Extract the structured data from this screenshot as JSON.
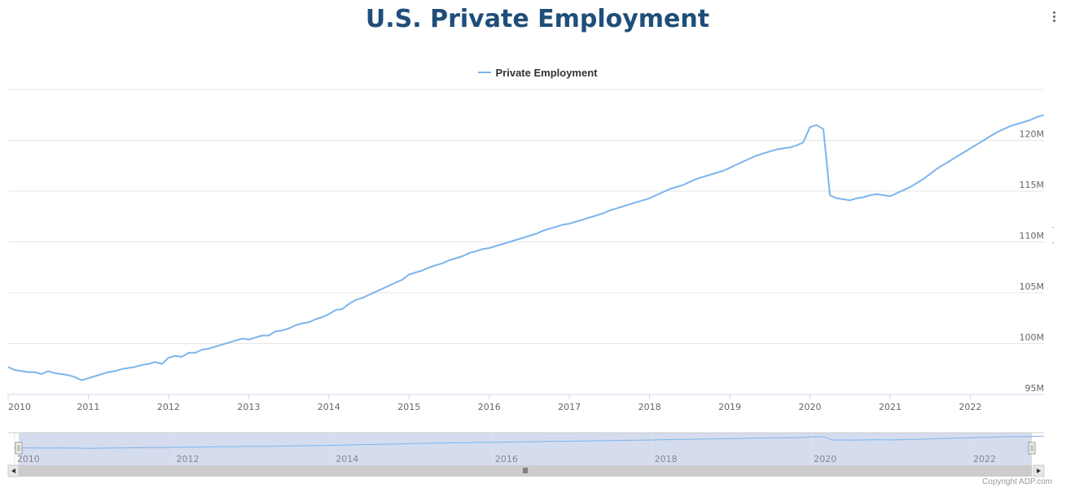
{
  "header": {
    "title": "U.S. Private Employment"
  },
  "menu": {
    "icon": "context-menu-icon"
  },
  "copyright": "Copyright ADP.com",
  "colors": {
    "series": "#7cb5ec",
    "title": "#1f4e79",
    "navigator_mask": "#ccd6eb"
  },
  "chart_data": {
    "type": "line",
    "title": "U.S. Private Employment",
    "legend": {
      "placement": "top-center",
      "entries": [
        "Private Employment"
      ]
    },
    "series": [
      {
        "name": "Private Employment",
        "points": [
          [
            2010.0,
            97.7
          ],
          [
            2010.083,
            97.4
          ],
          [
            2010.167,
            97.3
          ],
          [
            2010.25,
            97.2
          ],
          [
            2010.333,
            97.2
          ],
          [
            2010.417,
            97.0
          ],
          [
            2010.5,
            97.3
          ],
          [
            2010.583,
            97.1
          ],
          [
            2010.667,
            97.0
          ],
          [
            2010.75,
            96.9
          ],
          [
            2010.833,
            96.7
          ],
          [
            2010.917,
            96.4
          ],
          [
            2011.0,
            96.6
          ],
          [
            2011.083,
            96.8
          ],
          [
            2011.167,
            97.0
          ],
          [
            2011.25,
            97.2
          ],
          [
            2011.333,
            97.3
          ],
          [
            2011.417,
            97.5
          ],
          [
            2011.5,
            97.6
          ],
          [
            2011.583,
            97.7
          ],
          [
            2011.667,
            97.9
          ],
          [
            2011.75,
            98.0
          ],
          [
            2011.833,
            98.2
          ],
          [
            2011.917,
            98.0
          ],
          [
            2012.0,
            98.6
          ],
          [
            2012.083,
            98.8
          ],
          [
            2012.167,
            98.7
          ],
          [
            2012.25,
            99.1
          ],
          [
            2012.333,
            99.1
          ],
          [
            2012.417,
            99.4
          ],
          [
            2012.5,
            99.5
          ],
          [
            2012.583,
            99.7
          ],
          [
            2012.667,
            99.9
          ],
          [
            2012.75,
            100.1
          ],
          [
            2012.833,
            100.3
          ],
          [
            2012.917,
            100.5
          ],
          [
            2013.0,
            100.4
          ],
          [
            2013.083,
            100.6
          ],
          [
            2013.167,
            100.8
          ],
          [
            2013.25,
            100.8
          ],
          [
            2013.333,
            101.2
          ],
          [
            2013.417,
            101.3
          ],
          [
            2013.5,
            101.5
          ],
          [
            2013.583,
            101.8
          ],
          [
            2013.667,
            102.0
          ],
          [
            2013.75,
            102.1
          ],
          [
            2013.833,
            102.4
          ],
          [
            2013.917,
            102.6
          ],
          [
            2014.0,
            102.9
          ],
          [
            2014.083,
            103.3
          ],
          [
            2014.167,
            103.4
          ],
          [
            2014.25,
            103.9
          ],
          [
            2014.333,
            104.3
          ],
          [
            2014.417,
            104.5
          ],
          [
            2014.5,
            104.8
          ],
          [
            2014.583,
            105.1
          ],
          [
            2014.667,
            105.4
          ],
          [
            2014.75,
            105.7
          ],
          [
            2014.833,
            106.0
          ],
          [
            2014.917,
            106.3
          ],
          [
            2015.0,
            106.8
          ],
          [
            2015.083,
            107.0
          ],
          [
            2015.167,
            107.2
          ],
          [
            2015.25,
            107.5
          ],
          [
            2015.333,
            107.7
          ],
          [
            2015.417,
            107.9
          ],
          [
            2015.5,
            108.2
          ],
          [
            2015.583,
            108.4
          ],
          [
            2015.667,
            108.6
          ],
          [
            2015.75,
            108.9
          ],
          [
            2015.833,
            109.1
          ],
          [
            2015.917,
            109.3
          ],
          [
            2016.0,
            109.4
          ],
          [
            2016.083,
            109.6
          ],
          [
            2016.167,
            109.8
          ],
          [
            2016.25,
            110.0
          ],
          [
            2016.333,
            110.2
          ],
          [
            2016.417,
            110.4
          ],
          [
            2016.5,
            110.6
          ],
          [
            2016.583,
            110.8
          ],
          [
            2016.667,
            111.1
          ],
          [
            2016.75,
            111.3
          ],
          [
            2016.833,
            111.5
          ],
          [
            2016.917,
            111.7
          ],
          [
            2017.0,
            111.8
          ],
          [
            2017.083,
            112.0
          ],
          [
            2017.167,
            112.2
          ],
          [
            2017.25,
            112.4
          ],
          [
            2017.333,
            112.6
          ],
          [
            2017.417,
            112.8
          ],
          [
            2017.5,
            113.1
          ],
          [
            2017.583,
            113.3
          ],
          [
            2017.667,
            113.5
          ],
          [
            2017.75,
            113.7
          ],
          [
            2017.833,
            113.9
          ],
          [
            2017.917,
            114.1
          ],
          [
            2018.0,
            114.3
          ],
          [
            2018.083,
            114.6
          ],
          [
            2018.167,
            114.9
          ],
          [
            2018.25,
            115.2
          ],
          [
            2018.333,
            115.4
          ],
          [
            2018.417,
            115.6
          ],
          [
            2018.5,
            115.9
          ],
          [
            2018.583,
            116.2
          ],
          [
            2018.667,
            116.4
          ],
          [
            2018.75,
            116.6
          ],
          [
            2018.833,
            116.8
          ],
          [
            2018.917,
            117.0
          ],
          [
            2019.0,
            117.3
          ],
          [
            2019.083,
            117.6
          ],
          [
            2019.167,
            117.9
          ],
          [
            2019.25,
            118.2
          ],
          [
            2019.333,
            118.5
          ],
          [
            2019.417,
            118.7
          ],
          [
            2019.5,
            118.9
          ],
          [
            2019.583,
            119.1
          ],
          [
            2019.667,
            119.2
          ],
          [
            2019.75,
            119.3
          ],
          [
            2019.833,
            119.5
          ],
          [
            2019.917,
            119.8
          ],
          [
            2020.0,
            121.3
          ],
          [
            2020.083,
            121.5
          ],
          [
            2020.167,
            121.1
          ],
          [
            2020.25,
            114.6
          ],
          [
            2020.333,
            114.3
          ],
          [
            2020.417,
            114.2
          ],
          [
            2020.5,
            114.1
          ],
          [
            2020.583,
            114.3
          ],
          [
            2020.667,
            114.4
          ],
          [
            2020.75,
            114.6
          ],
          [
            2020.833,
            114.7
          ],
          [
            2020.917,
            114.6
          ],
          [
            2021.0,
            114.5
          ],
          [
            2021.083,
            114.8
          ],
          [
            2021.167,
            115.1
          ],
          [
            2021.25,
            115.4
          ],
          [
            2021.333,
            115.8
          ],
          [
            2021.417,
            116.2
          ],
          [
            2021.5,
            116.7
          ],
          [
            2021.583,
            117.2
          ],
          [
            2021.667,
            117.6
          ],
          [
            2021.75,
            118.0
          ],
          [
            2021.833,
            118.4
          ],
          [
            2021.917,
            118.8
          ],
          [
            2022.0,
            119.2
          ],
          [
            2022.083,
            119.6
          ],
          [
            2022.167,
            120.0
          ],
          [
            2022.25,
            120.4
          ],
          [
            2022.333,
            120.8
          ],
          [
            2022.417,
            121.1
          ],
          [
            2022.5,
            121.4
          ],
          [
            2022.583,
            121.6
          ],
          [
            2022.667,
            121.8
          ],
          [
            2022.75,
            122.0
          ],
          [
            2022.833,
            122.3
          ],
          [
            2022.917,
            122.5
          ]
        ]
      }
    ],
    "x_range": [
      2010.0,
      2022.92
    ],
    "y_range": [
      95,
      125
    ],
    "x_ticks": [
      {
        "value": 2010,
        "label": "2010"
      },
      {
        "value": 2011,
        "label": "2011"
      },
      {
        "value": 2012,
        "label": "2012"
      },
      {
        "value": 2013,
        "label": "2013"
      },
      {
        "value": 2014,
        "label": "2014"
      },
      {
        "value": 2015,
        "label": "2015"
      },
      {
        "value": 2016,
        "label": "2016"
      },
      {
        "value": 2017,
        "label": "2017"
      },
      {
        "value": 2018,
        "label": "2018"
      },
      {
        "value": 2019,
        "label": "2019"
      },
      {
        "value": 2020,
        "label": "2020"
      },
      {
        "value": 2021,
        "label": "2021"
      },
      {
        "value": 2022,
        "label": "2022"
      }
    ],
    "y_ticks": [
      {
        "value": 95,
        "label": "95M"
      },
      {
        "value": 100,
        "label": "100M"
      },
      {
        "value": 105,
        "label": "105M"
      },
      {
        "value": 110,
        "label": "110M"
      },
      {
        "value": 115,
        "label": "115M"
      },
      {
        "value": 120,
        "label": "120M"
      }
    ],
    "y_axis_side": "right",
    "grid": true,
    "navigator": {
      "x_range": [
        2009.92,
        2022.92
      ],
      "y_range": [
        60,
        130
      ],
      "ticks": [
        {
          "value": 2010,
          "label": "2010"
        },
        {
          "value": 2012,
          "label": "2012"
        },
        {
          "value": 2014,
          "label": "2014"
        },
        {
          "value": 2016,
          "label": "2016"
        },
        {
          "value": 2018,
          "label": "2018"
        },
        {
          "value": 2020,
          "label": "2020"
        },
        {
          "value": 2022,
          "label": "2022"
        }
      ]
    }
  }
}
